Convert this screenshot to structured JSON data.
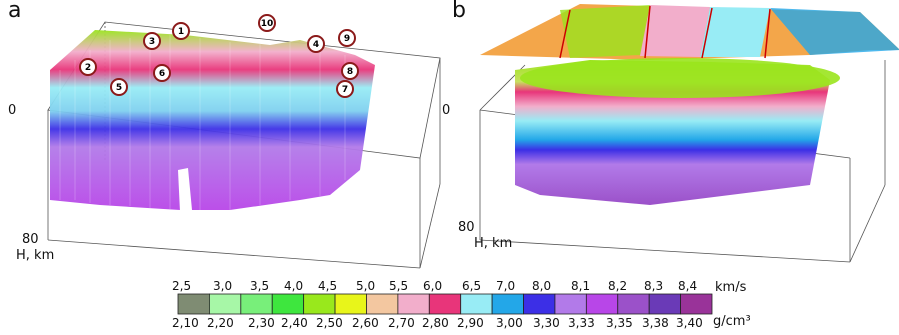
{
  "panels": {
    "a": {
      "label": "a",
      "depth_top": "0",
      "depth_bottom": "80",
      "axis_label": "H, km",
      "markers": [
        "1",
        "2",
        "3",
        "4",
        "5",
        "6",
        "7",
        "8",
        "9",
        "10"
      ]
    },
    "b": {
      "label": "b",
      "depth_top": "0",
      "depth_bottom": "80",
      "axis_label": "H, km"
    }
  },
  "legend": {
    "velocity_unit": "km/s",
    "density_unit": "g/cm³",
    "velocity_labels": [
      "2,5",
      "3,0",
      "3,5",
      "4,0",
      "4,5",
      "5,0",
      "5,5",
      "6,0",
      "6,5",
      "7,0",
      "8,0",
      "8,1",
      "8,2",
      "8,3",
      "8,4"
    ],
    "density_labels": [
      "2,10",
      "2,20",
      "2,30",
      "2,40",
      "2,50",
      "2,60",
      "2,70",
      "2,80",
      "2,90",
      "3,00",
      "3,30",
      "3,33",
      "3,35",
      "3,38",
      "3,40"
    ],
    "colors": [
      "#7f8c73",
      "#a7f7a7",
      "#78ef7a",
      "#3ee63e",
      "#99e81c",
      "#e8f51a",
      "#f3c7a0",
      "#f2aecb",
      "#e8357a",
      "#98ecf5",
      "#23a7e8",
      "#3c2fe6",
      "#b27ae9",
      "#b846e8",
      "#9b51c9",
      "#6a3ab7",
      "#993399"
    ]
  }
}
